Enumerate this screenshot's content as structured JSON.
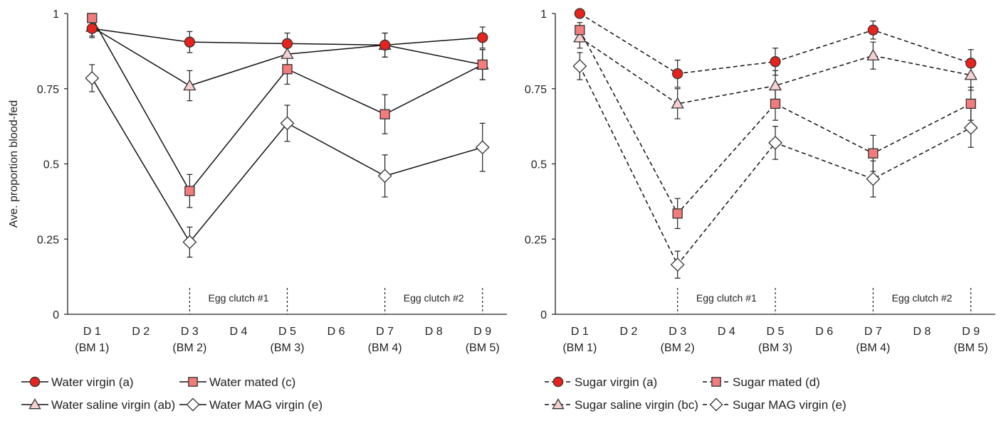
{
  "chart_data": [
    {
      "type": "line",
      "ylabel": "Ave. proportion blood-fed",
      "ylim": [
        0,
        1
      ],
      "y_ticks": [
        "0",
        "0.25",
        "0.5",
        "0.75",
        "1"
      ],
      "x": [
        1,
        2,
        3,
        4,
        5,
        6,
        7,
        8,
        9
      ],
      "x_tick_labels": [
        [
          "D 1",
          "(BM 1)"
        ],
        [
          "D 2",
          ""
        ],
        [
          "D 3",
          "(BM 2)"
        ],
        [
          "D 4",
          ""
        ],
        [
          "D 5",
          "(BM 3)"
        ],
        [
          "D 6",
          ""
        ],
        [
          "D 7",
          "(BM 4)"
        ],
        [
          "D 8",
          ""
        ],
        [
          "D 9",
          "(BM 5)"
        ]
      ],
      "line_style": "solid",
      "annotations": [
        {
          "text": "Egg clutch #1",
          "from": 3,
          "to": 5
        },
        {
          "text": "Egg clutch #2",
          "from": 7,
          "to": 9
        }
      ],
      "series": [
        {
          "name": "Water virgin (a)",
          "marker": "circle",
          "fill": "#e8231c",
          "x": [
            1,
            3,
            5,
            7,
            9
          ],
          "y": [
            0.95,
            0.905,
            0.9,
            0.895,
            0.92
          ],
          "err": [
            0.03,
            0.035,
            0.035,
            0.04,
            0.035
          ]
        },
        {
          "name": "Water mated (c)",
          "marker": "square",
          "fill": "#f08080",
          "x": [
            1,
            3,
            5,
            7,
            9
          ],
          "y": [
            0.985,
            0.41,
            0.815,
            0.665,
            0.83
          ],
          "err": [
            0.015,
            0.055,
            0.05,
            0.065,
            0.05
          ]
        },
        {
          "name": "Water saline virgin (ab)",
          "marker": "triangle",
          "fill": "#f8d0d0",
          "x": [
            1,
            3,
            5,
            7,
            9
          ],
          "y": [
            0.955,
            0.76,
            0.865,
            0.895,
            0.83
          ],
          "err": [
            0.03,
            0.05,
            0.04,
            0.04,
            0.05
          ]
        },
        {
          "name": "Water MAG virgin (e)",
          "marker": "diamond",
          "fill": "#ffffff",
          "x": [
            1,
            3,
            5,
            7,
            9
          ],
          "y": [
            0.785,
            0.24,
            0.635,
            0.46,
            0.555
          ],
          "err": [
            0.045,
            0.05,
            0.06,
            0.07,
            0.08
          ]
        }
      ]
    },
    {
      "type": "line",
      "ylabel": "",
      "ylim": [
        0,
        1
      ],
      "y_ticks": [
        "0",
        "0.25",
        "0.5",
        "0.75",
        "1"
      ],
      "x": [
        1,
        2,
        3,
        4,
        5,
        6,
        7,
        8,
        9
      ],
      "x_tick_labels": [
        [
          "D 1",
          "(BM 1)"
        ],
        [
          "D 2",
          ""
        ],
        [
          "D 3",
          "(BM 2)"
        ],
        [
          "D 4",
          ""
        ],
        [
          "D 5",
          "(BM 3)"
        ],
        [
          "D 6",
          ""
        ],
        [
          "D 7",
          "(BM 4)"
        ],
        [
          "D 8",
          ""
        ],
        [
          "D 9",
          "(BM 5)"
        ]
      ],
      "line_style": "dashed",
      "annotations": [
        {
          "text": "Egg clutch #1",
          "from": 3,
          "to": 5
        },
        {
          "text": "Egg clutch #2",
          "from": 7,
          "to": 9
        }
      ],
      "series": [
        {
          "name": "Sugar virgin (a)",
          "marker": "circle",
          "fill": "#e8231c",
          "x": [
            1,
            3,
            5,
            7,
            9
          ],
          "y": [
            1.0,
            0.8,
            0.84,
            0.945,
            0.835
          ],
          "err": [
            0.0,
            0.045,
            0.045,
            0.03,
            0.045
          ]
        },
        {
          "name": "Sugar mated (d)",
          "marker": "square",
          "fill": "#f08080",
          "x": [
            1,
            3,
            5,
            7,
            9
          ],
          "y": [
            0.945,
            0.335,
            0.7,
            0.535,
            0.7
          ],
          "err": [
            0.025,
            0.05,
            0.055,
            0.06,
            0.055
          ]
        },
        {
          "name": "Sugar saline virgin (bc)",
          "marker": "triangle",
          "fill": "#f8d0d0",
          "x": [
            1,
            3,
            5,
            7,
            9
          ],
          "y": [
            0.92,
            0.7,
            0.76,
            0.86,
            0.795
          ],
          "err": [
            0.035,
            0.05,
            0.05,
            0.045,
            0.05
          ]
        },
        {
          "name": "Sugar MAG virgin (e)",
          "marker": "diamond",
          "fill": "#ffffff",
          "x": [
            1,
            3,
            5,
            7,
            9
          ],
          "y": [
            0.825,
            0.165,
            0.57,
            0.45,
            0.62
          ],
          "err": [
            0.045,
            0.045,
            0.055,
            0.06,
            0.065
          ]
        }
      ]
    }
  ]
}
